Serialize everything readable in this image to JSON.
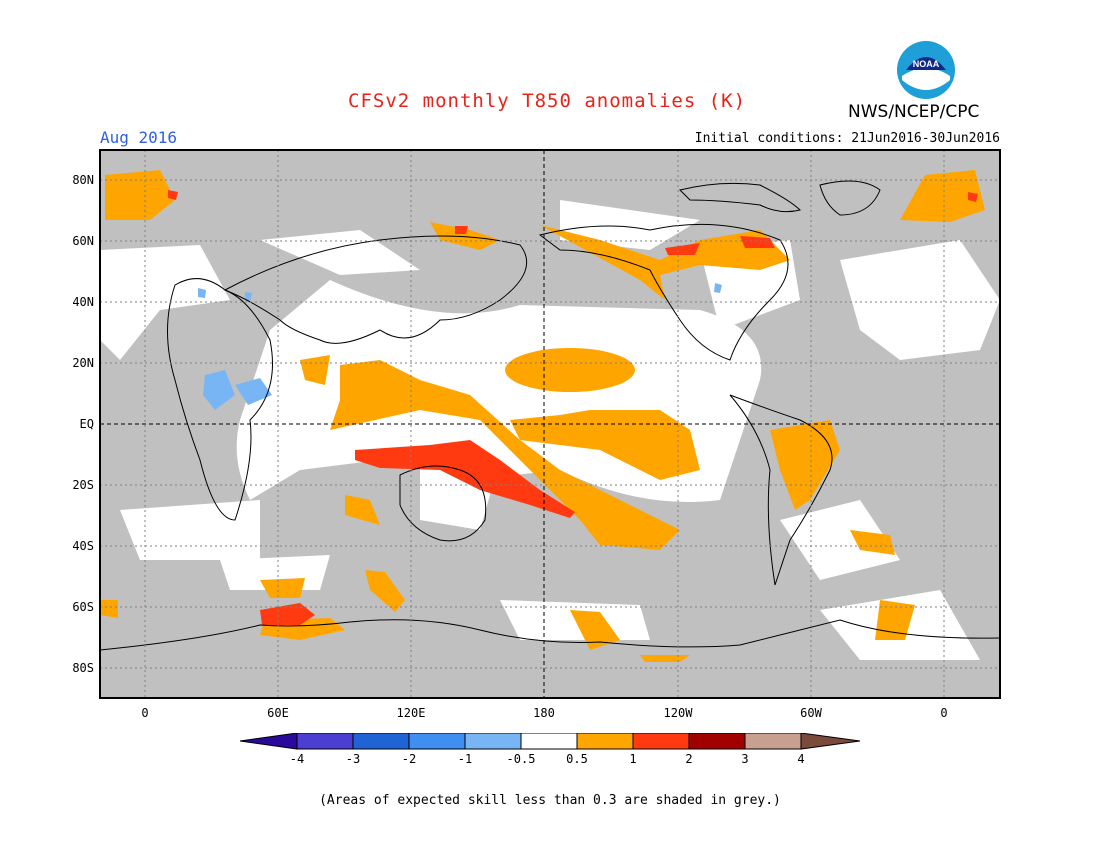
{
  "header": {
    "title": "CFSv2 monthly T850 anomalies (K)",
    "agency": "NWS/NCEP/CPC",
    "valid_month": "Aug 2016",
    "initial_conditions": "Initial conditions: 21Jun2016-30Jun2016",
    "logo_text": "NOAA"
  },
  "axes": {
    "lat_labels": [
      "80N",
      "60N",
      "40N",
      "20N",
      "EQ",
      "20S",
      "40S",
      "60S",
      "80S"
    ],
    "lon_labels": [
      "0",
      "60E",
      "120E",
      "180",
      "120W",
      "60W",
      "0"
    ]
  },
  "colorbar": {
    "labels": [
      "-4",
      "-3",
      "-2",
      "-1",
      "-0.5",
      "0.5",
      "1",
      "2",
      "3",
      "4"
    ],
    "colors": [
      "#2a0a9c",
      "#4b3ed0",
      "#1f63d4",
      "#3f8ef0",
      "#78b5f5",
      "#ffffff",
      "#ffa500",
      "#ff3a10",
      "#a00000",
      "#c8a090",
      "#7a4a3a"
    ]
  },
  "footnote": "(Areas of expected skill less than 0.3 are shaded in grey.)"
}
